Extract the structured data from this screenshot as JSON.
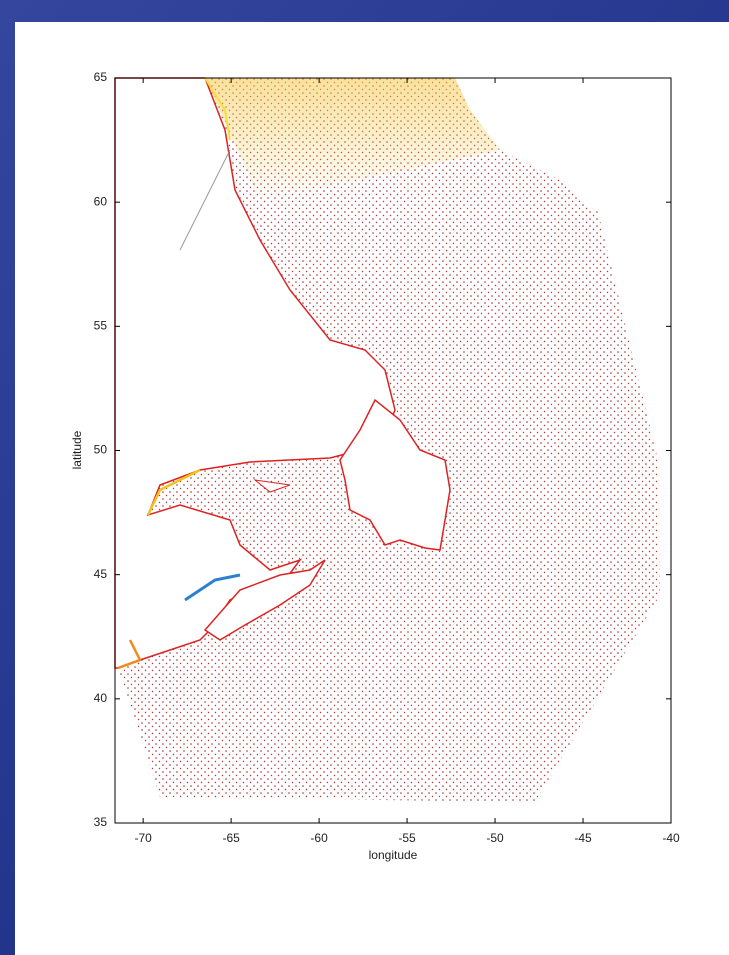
{
  "chart_data": {
    "type": "map",
    "xlabel": "longitude",
    "ylabel": "latitude",
    "xlim": [
      -71.6,
      -40
    ],
    "ylim": [
      35,
      65
    ],
    "xticks": [
      -70,
      -65,
      -60,
      -55,
      -50,
      -45,
      -40
    ],
    "yticks": [
      35,
      40,
      45,
      50,
      55,
      60,
      65
    ]
  }
}
